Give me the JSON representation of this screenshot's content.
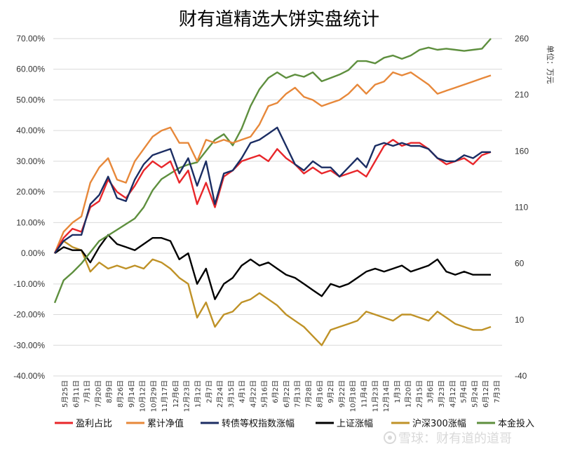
{
  "chart_data": {
    "type": "line",
    "title": "财有道精选大饼实盘统计",
    "y_unit_label": "单位：万元",
    "y_left": {
      "ticks": [
        "70.00%",
        "60.00%",
        "50.00%",
        "40.00%",
        "30.00%",
        "20.00%",
        "10.00%",
        "0.00%",
        "-10.00%",
        "-20.00%",
        "-30.00%",
        "-40.00%"
      ],
      "range": [
        -40,
        70
      ]
    },
    "y_right": {
      "ticks": [
        "260",
        "210",
        "160",
        "110",
        "60",
        "10",
        "-40"
      ],
      "range": [
        -40,
        260
      ]
    },
    "x_ticks": [
      "5月25日",
      "6月11日",
      "7月1日",
      "7月20日",
      "8月9日",
      "8月26日",
      "9月14日",
      "10月12日",
      "10月29日",
      "11月17日",
      "12月6日",
      "12月23日",
      "1月12日",
      "2月7日",
      "2月24日",
      "3月15日",
      "4月1日",
      "4月22日",
      "5月16日",
      "6月2日",
      "6月22日",
      "7月13日",
      "7月28日",
      "8月16日",
      "9月2日",
      "9月22日",
      "10月18日",
      "11月4日",
      "11月23日",
      "12月14日",
      "1月3日",
      "1月20日",
      "2月15日",
      "3月6日",
      "3月23日",
      "4月12日",
      "5月4日",
      "5月24日",
      "6月12日",
      "7月3日"
    ],
    "grid": true,
    "legend_position": "bottom",
    "series": [
      {
        "name": "盈利占比",
        "color": "#e8262a",
        "axis": "left",
        "values": [
          0,
          5,
          8,
          7,
          15,
          17,
          24,
          20,
          18,
          22,
          27,
          30,
          28,
          30,
          23,
          27,
          16,
          23,
          15,
          25,
          27,
          30,
          31,
          32,
          30,
          34,
          31,
          29,
          26,
          28,
          26,
          27,
          25,
          26,
          27,
          25,
          30,
          35,
          37,
          35,
          36,
          36,
          34,
          31,
          29,
          30,
          31,
          29,
          32,
          33
        ]
      },
      {
        "name": "累计净值",
        "color": "#e7883a",
        "axis": "left",
        "values": [
          0,
          7,
          10,
          12,
          23,
          28,
          31,
          24,
          23,
          30,
          34,
          38,
          40,
          41,
          36,
          36,
          30,
          37,
          36,
          37,
          36,
          37,
          38,
          42,
          48,
          49,
          52,
          54,
          51,
          50,
          48,
          49,
          50,
          52,
          55,
          52,
          55,
          56,
          59,
          58,
          59,
          57,
          55,
          52,
          53,
          54,
          55,
          56,
          57,
          58
        ]
      },
      {
        "name": "转债等权指数涨幅",
        "color": "#1b2d63",
        "axis": "left",
        "values": [
          0,
          4,
          6,
          6,
          16,
          19,
          25,
          18,
          17,
          24,
          29,
          32,
          33,
          34,
          26,
          31,
          22,
          30,
          16,
          26,
          27,
          31,
          36,
          37,
          39,
          41,
          35,
          29,
          27,
          30,
          28,
          28,
          25,
          28,
          31,
          28,
          35,
          36,
          35,
          36,
          35,
          35,
          34,
          31,
          30,
          30,
          32,
          31,
          33,
          33
        ]
      },
      {
        "name": "上证涨幅",
        "color": "#000000",
        "axis": "left",
        "values": [
          0,
          2,
          1,
          1,
          -3,
          2,
          6,
          3,
          2,
          1,
          3,
          5,
          5,
          4,
          -2,
          0,
          -10,
          -5,
          -15,
          -10,
          -8,
          -4,
          -2,
          -4,
          -3,
          -5,
          -7,
          -8,
          -10,
          -12,
          -14,
          -10,
          -11,
          -10,
          -8,
          -6,
          -5,
          -6,
          -5,
          -4,
          -6,
          -5,
          -4,
          -2,
          -6,
          -7,
          -6,
          -7,
          -7,
          -7
        ]
      },
      {
        "name": "沪深300涨幅",
        "color": "#bf9227",
        "axis": "left",
        "values": [
          0,
          4,
          2,
          1,
          -6,
          -3,
          -5,
          -4,
          -5,
          -4,
          -5,
          -2,
          -3,
          -5,
          -8,
          -10,
          -21,
          -16,
          -24,
          -20,
          -19,
          -16,
          -15,
          -13,
          -15,
          -17,
          -20,
          -22,
          -24,
          -27,
          -30,
          -25,
          -24,
          -23,
          -22,
          -19,
          -20,
          -21,
          -22,
          -20,
          -20,
          -21,
          -22,
          -19,
          -21,
          -23,
          -24,
          -25,
          -25,
          -24
        ]
      },
      {
        "name": "本金投入",
        "color": "#5e8f3e",
        "axis": "right",
        "values": [
          25,
          45,
          52,
          60,
          70,
          80,
          85,
          90,
          95,
          100,
          110,
          125,
          135,
          140,
          145,
          148,
          150,
          160,
          170,
          175,
          165,
          180,
          200,
          215,
          225,
          230,
          225,
          228,
          226,
          230,
          222,
          225,
          228,
          232,
          240,
          240,
          238,
          243,
          245,
          242,
          245,
          250,
          252,
          250,
          251,
          250,
          249,
          250,
          251,
          260
        ]
      }
    ]
  },
  "watermark": "雪球：财有道的道哥"
}
